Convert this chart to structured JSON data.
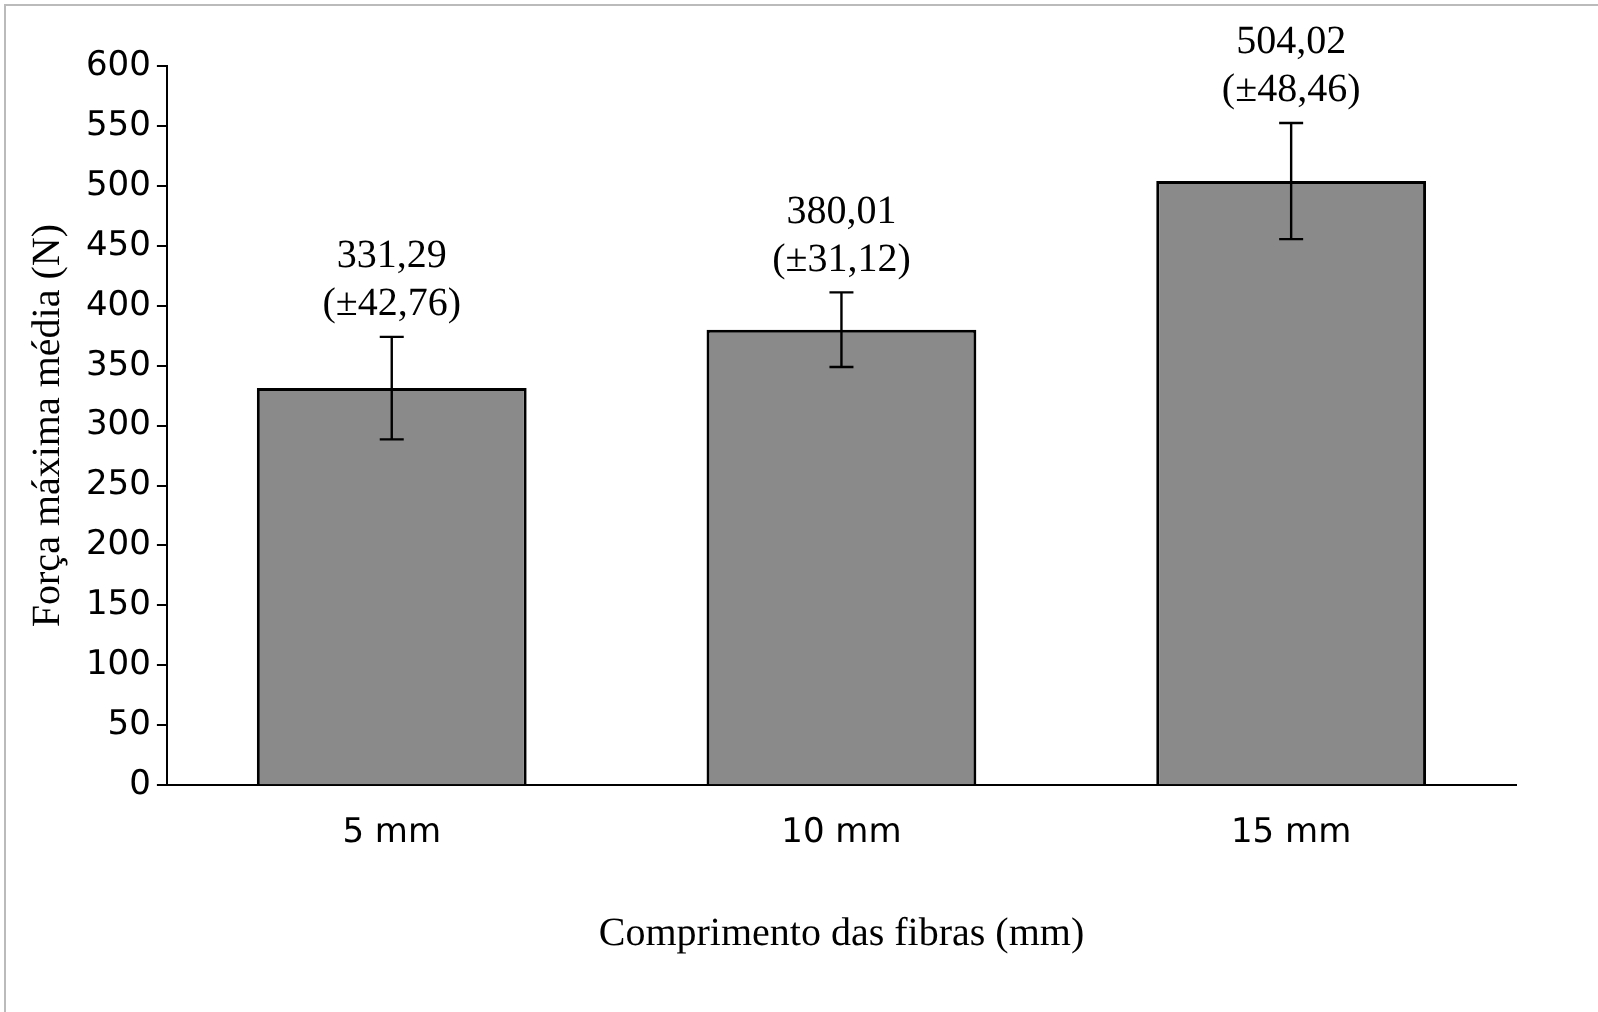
{
  "chart_data": {
    "type": "bar",
    "xlabel": "Comprimento das fibras (mm)",
    "ylabel": "Força máxima média (N)",
    "categories": [
      "5 mm",
      "10 mm",
      "15 mm"
    ],
    "values": [
      331.29,
      380.01,
      504.02
    ],
    "errors": [
      42.76,
      31.12,
      48.46
    ],
    "value_labels": [
      "331,29\n(±42,76)",
      "380,01\n(±31,12)",
      "504,02\n(±48,46)"
    ],
    "color": "#8a8a8a",
    "ylim": [
      0,
      600
    ],
    "yticks": [
      0,
      50,
      100,
      150,
      200,
      250,
      300,
      350,
      400,
      450,
      500,
      550,
      600
    ],
    "grid": false,
    "legend": false
  }
}
